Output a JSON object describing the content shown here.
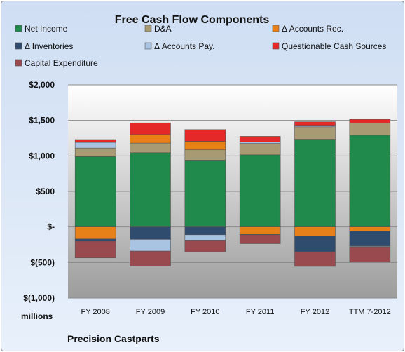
{
  "chart_data": {
    "type": "bar",
    "stacked": true,
    "title": "Free Cash Flow Components",
    "unit_label": "millions",
    "footer": "Precision Castparts",
    "categories": [
      "FY 2008",
      "FY 2009",
      "FY 2010",
      "FY 2011",
      "FY 2012",
      "TTM 7-2012"
    ],
    "ylim": [
      -1000,
      2000
    ],
    "yticks": [
      -1000,
      -500,
      0,
      500,
      1000,
      1500,
      2000
    ],
    "ytick_labels": [
      "$(1,000)",
      "$(500)",
      "$-",
      "$500",
      "$1,000",
      "$1,500",
      "$2,000"
    ],
    "grid": true,
    "legend_position": "top",
    "series": [
      {
        "name": "Net Income",
        "color": "#1f8a4c",
        "values": [
          990,
          1045,
          940,
          1015,
          1235,
          1290
        ]
      },
      {
        "name": "D&A",
        "color": "#a89a72",
        "values": [
          120,
          135,
          145,
          160,
          175,
          175
        ]
      },
      {
        "name": "Δ Accounts Rec.",
        "color": "#e8801a",
        "values": [
          -170,
          120,
          120,
          -105,
          -125,
          -60
        ]
      },
      {
        "name": "Δ Inventories",
        "color": "#2f4b6e",
        "values": [
          -30,
          -175,
          -110,
          -5,
          -225,
          -210
        ]
      },
      {
        "name": "Δ Accounts Pay.",
        "color": "#a9c3e2",
        "values": [
          80,
          -165,
          -75,
          20,
          20,
          -10
        ]
      },
      {
        "name": "Questionable Cash Sources",
        "color": "#e52828",
        "values": [
          40,
          165,
          165,
          80,
          50,
          50
        ]
      },
      {
        "name": "Capital Expenditure",
        "color": "#984a4f",
        "values": [
          -235,
          -210,
          -165,
          -125,
          -205,
          -215
        ]
      }
    ]
  }
}
